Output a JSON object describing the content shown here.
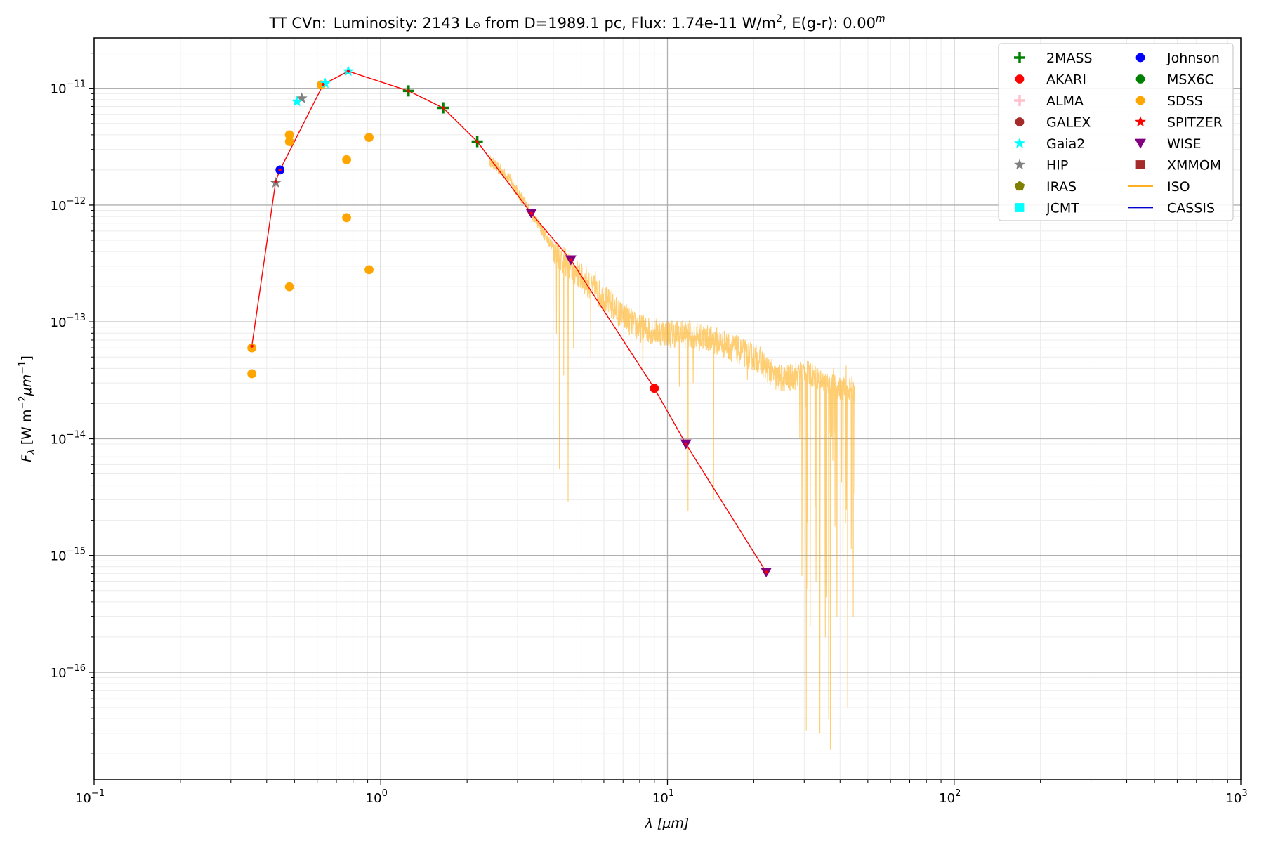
{
  "chart_data": {
    "type": "scatter",
    "title": {
      "object": "TT CVn:",
      "luminosity_prefix": "Luminosity: 2143 L",
      "sun_symbol": "⊙",
      "distance_text": " from D=1989.1 pc, Flux: 1.74e-11 W/m",
      "flux_exp": "2",
      "extinction_text": ", E(g-r): 0.00",
      "extinction_sup": "m"
    },
    "xlabel": {
      "sym": "λ",
      "unit": "[μm]"
    },
    "ylabel": {
      "sym": "F",
      "sub": "λ",
      "unit_a": "[W m",
      "exp_a": "−2",
      "unit_b": "μm",
      "exp_b": "−1",
      "close": "]"
    },
    "xscale": "log",
    "yscale": "log",
    "xlim": [
      0.1,
      1000
    ],
    "ylim": [
      1.2e-17,
      2.7e-11
    ],
    "x_ticks": [
      {
        "value": 0.1,
        "base": "10",
        "exp": "−1"
      },
      {
        "value": 1,
        "base": "10",
        "exp": "0"
      },
      {
        "value": 10,
        "base": "10",
        "exp": "1"
      },
      {
        "value": 100,
        "base": "10",
        "exp": "2"
      },
      {
        "value": 1000,
        "base": "10",
        "exp": "3"
      }
    ],
    "y_ticks": [
      {
        "value": 1e-16,
        "base": "10",
        "exp": "−16"
      },
      {
        "value": 1e-15,
        "base": "10",
        "exp": "−15"
      },
      {
        "value": 1e-14,
        "base": "10",
        "exp": "−14"
      },
      {
        "value": 1e-13,
        "base": "10",
        "exp": "−13"
      },
      {
        "value": 1e-12,
        "base": "10",
        "exp": "−12"
      },
      {
        "value": 1e-11,
        "base": "10",
        "exp": "−11"
      }
    ],
    "grid": true,
    "legend_position": "top-right",
    "legend": [
      {
        "name": "2MASS",
        "marker": "plus",
        "color": "#008000"
      },
      {
        "name": "AKARI",
        "marker": "circle",
        "color": "#ff0000"
      },
      {
        "name": "ALMA",
        "marker": "plus",
        "color": "#ffc0cb"
      },
      {
        "name": "GALEX",
        "marker": "circle",
        "color": "#a52a2a"
      },
      {
        "name": "Gaia2",
        "marker": "star",
        "color": "#00ffff"
      },
      {
        "name": "HIP",
        "marker": "star",
        "color": "#808080"
      },
      {
        "name": "IRAS",
        "marker": "pentagon",
        "color": "#808000"
      },
      {
        "name": "JCMT",
        "marker": "square",
        "color": "#00ffff"
      },
      {
        "name": "Johnson",
        "marker": "circle",
        "color": "#0000ff"
      },
      {
        "name": "MSX6C",
        "marker": "circle",
        "color": "#008000"
      },
      {
        "name": "SDSS",
        "marker": "circle",
        "color": "#ffa500"
      },
      {
        "name": "SPITZER",
        "marker": "star",
        "color": "#ff0000"
      },
      {
        "name": "WISE",
        "marker": "triangle-down",
        "color": "#800080"
      },
      {
        "name": "XMMOM",
        "marker": "square",
        "color": "#a52a2a"
      },
      {
        "name": "ISO",
        "marker": "line",
        "color": "#ffa500"
      },
      {
        "name": "CASSIS",
        "marker": "line",
        "color": "#0000cd"
      }
    ],
    "model_line": {
      "color": "#ff0000",
      "points": [
        [
          0.355,
          6.2e-14
        ],
        [
          0.43,
          1.6e-12
        ],
        [
          0.445,
          2e-12
        ],
        [
          0.63,
          1.08e-11
        ],
        [
          0.77,
          1.4e-11
        ],
        [
          1.25,
          9.5e-12
        ],
        [
          1.65,
          6.8e-12
        ],
        [
          2.17,
          3.5e-12
        ],
        [
          3.35,
          8.5e-13
        ],
        [
          4.6,
          3.4e-13
        ],
        [
          9.0,
          2.7e-14
        ],
        [
          11.6,
          9e-15
        ],
        [
          22.1,
          7.2e-16
        ]
      ]
    },
    "series": [
      {
        "name": "SDSS",
        "marker": "circle",
        "color": "#ffa500",
        "points": [
          [
            0.355,
            6e-14
          ],
          [
            0.355,
            3.6e-14
          ],
          [
            0.48,
            4e-12
          ],
          [
            0.48,
            3.5e-12
          ],
          [
            0.48,
            2e-13
          ],
          [
            0.62,
            1.07e-11
          ],
          [
            0.76,
            2.45e-12
          ],
          [
            0.76,
            7.8e-13
          ],
          [
            0.91,
            3.8e-12
          ],
          [
            0.91,
            2.8e-13
          ]
        ]
      },
      {
        "name": "HIP",
        "marker": "star",
        "color": "#808080",
        "points": [
          [
            0.43,
            1.55e-12
          ],
          [
            0.53,
            8.2e-12
          ]
        ]
      },
      {
        "name": "Johnson",
        "marker": "circle",
        "color": "#0000ff",
        "points": [
          [
            0.445,
            2e-12
          ]
        ]
      },
      {
        "name": "Gaia2",
        "marker": "star",
        "color": "#00ffff",
        "points": [
          [
            0.51,
            7.7e-12
          ],
          [
            0.64,
            1.1e-11
          ],
          [
            0.77,
            1.4e-11
          ]
        ]
      },
      {
        "name": "2MASS",
        "marker": "plus",
        "color": "#008000",
        "points": [
          [
            1.25,
            9.5e-12
          ],
          [
            1.65,
            6.8e-12
          ],
          [
            2.17,
            3.5e-12
          ]
        ]
      },
      {
        "name": "WISE",
        "marker": "triangle-down",
        "color": "#800080",
        "points": [
          [
            3.35,
            8.5e-13
          ],
          [
            4.6,
            3.4e-13
          ],
          [
            11.6,
            9e-15
          ],
          [
            22.1,
            7.2e-16
          ]
        ]
      },
      {
        "name": "AKARI",
        "marker": "circle",
        "color": "#ff0000",
        "points": [
          [
            9.0,
            2.7e-14
          ]
        ]
      }
    ],
    "iso_spectrum": {
      "color": "#ffa500",
      "baseline": [
        [
          2.4,
          2.4e-12
        ],
        [
          2.8,
          1.7e-12
        ],
        [
          3.3,
          9e-13
        ],
        [
          3.8,
          5.2e-13
        ],
        [
          4.2,
          3.6e-13
        ],
        [
          5.0,
          2.4e-13
        ],
        [
          6.0,
          1.6e-13
        ],
        [
          7.0,
          1.1e-13
        ],
        [
          8.0,
          8.8e-14
        ],
        [
          10.0,
          8e-14
        ],
        [
          12.0,
          7.8e-14
        ],
        [
          15.0,
          6.8e-14
        ],
        [
          18.0,
          5.6e-14
        ],
        [
          21.0,
          4.7e-14
        ],
        [
          24.0,
          3.3e-14
        ],
        [
          27.0,
          3.3e-14
        ],
        [
          30.0,
          3.8e-14
        ],
        [
          35.0,
          3.1e-14
        ],
        [
          40.0,
          2.7e-14
        ],
        [
          45.0,
          2.6e-14
        ]
      ],
      "dips": [
        [
          4.1,
          8e-14
        ],
        [
          4.2,
          5.5e-15
        ],
        [
          4.35,
          3.5e-14
        ],
        [
          4.5,
          2.9e-15
        ],
        [
          4.7,
          6e-14
        ],
        [
          5.4,
          5e-14
        ],
        [
          8.2,
          3.5e-14
        ],
        [
          11.0,
          2.8e-14
        ],
        [
          11.8,
          2.4e-15
        ],
        [
          12.3,
          3e-14
        ],
        [
          14.5,
          3e-15
        ],
        [
          19.0,
          3.2e-14
        ],
        [
          28.5,
          1.2e-15
        ],
        [
          29.5,
          4e-15
        ],
        [
          30.5,
          3.2e-17
        ],
        [
          31.5,
          2.5e-16
        ],
        [
          33.0,
          6e-16
        ],
        [
          34.0,
          3e-17
        ],
        [
          35.5,
          2e-16
        ],
        [
          36.5,
          4e-17
        ],
        [
          37.0,
          2.2e-17
        ],
        [
          39.0,
          3e-16
        ],
        [
          41.0,
          8e-16
        ],
        [
          42.5,
          5e-17
        ],
        [
          44.5,
          3e-16
        ],
        [
          46.0,
          1.5e-15
        ]
      ],
      "peaks": [
        [
          4.3,
          2.6e-13
        ],
        [
          5.2,
          3e-13
        ],
        [
          5.6,
          2.7e-13
        ],
        [
          6.4,
          1.9e-13
        ],
        [
          7.2,
          1.4e-13
        ],
        [
          28.5,
          4e-14
        ],
        [
          32.0,
          4.3e-14
        ],
        [
          38.0,
          4e-14
        ],
        [
          42.0,
          4.2e-14
        ],
        [
          44.0,
          3.4e-14
        ],
        [
          46.0,
          3.3e-14
        ]
      ]
    }
  }
}
